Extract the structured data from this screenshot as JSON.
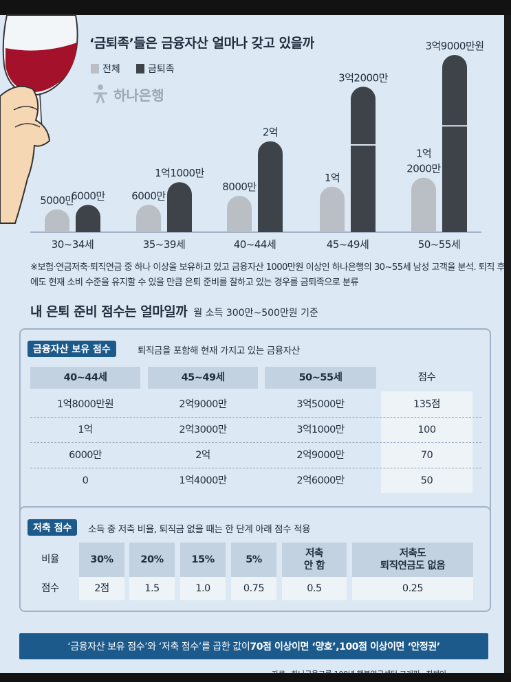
{
  "chart_data": {
    "type": "bar",
    "title": "‘금퇴족’들은 금융자산 얼마나 갖고 있을까",
    "categories": [
      "30~34세",
      "35~39세",
      "40~44세",
      "45~49세",
      "50~55세"
    ],
    "series": [
      {
        "name": "전체",
        "values": [
          5000,
          6000,
          8000,
          10000,
          12000
        ],
        "labels": [
          "5000만",
          "6000만",
          "8000만",
          "1억",
          "1억\n2000만"
        ],
        "color": "#b9bfc5"
      },
      {
        "name": "금퇴족",
        "values": [
          6000,
          11000,
          20000,
          32000,
          39000
        ],
        "labels": [
          "6000만",
          "1억1000만",
          "2억",
          "3억2000만",
          "3억9000만원"
        ],
        "color": "#3d4349"
      }
    ],
    "unit": "만원",
    "note": "※보험·연금저축·퇴직연금 중 하나 이상을 보유하고 있고 금융자산 1000만원 이상인 하나은행의 30~55세 남성 고객을 분석. 퇴직 후에도 현재 소비 수준을 유지할 수 있을 만큼 은퇴 준비를 잘하고 있는 경우를 금퇴족으로 분류"
  },
  "logo": {
    "text": "하나은행"
  },
  "section": {
    "title": "내 은퇴 준비 점수는 얼마일까",
    "subtitle": "월 소득 300만~500만원 기준"
  },
  "asset_table": {
    "label": "금융자산 보유 점수",
    "desc": "퇴직금을 포함해 현재 가지고 있는 금융자산",
    "headers": [
      "40~44세",
      "45~49세",
      "50~55세",
      "점수"
    ],
    "rows": [
      [
        "1억8000만원",
        "2억9000만",
        "3억5000만",
        "135점"
      ],
      [
        "1억",
        "2억3000만",
        "3억1000만",
        "100"
      ],
      [
        "6000만",
        "2억",
        "2억9000만",
        "70"
      ],
      [
        "0",
        "1억4000만",
        "2억6000만",
        "50"
      ]
    ]
  },
  "savings_table": {
    "label": "저축 점수",
    "desc": "소득 중 저축 비율, 퇴직금 없을 때는 한 단계 아래 점수 적용",
    "row_labels": [
      "비율",
      "점수"
    ],
    "headers": [
      "30%",
      "20%",
      "15%",
      "5%",
      "저축\n안 함",
      "저축도\n퇴직연금도 없음"
    ],
    "scores": [
      "2점",
      "1.5",
      "1.0",
      "0.75",
      "0.5",
      "0.25"
    ]
  },
  "banner": {
    "part1": "‘금융자산 보유 점수’와 ‘저축 점수’를 곱한 값이 ",
    "part2": "70점 이상이면 ‘양호’,",
    "part3": " ",
    "part4": "100점 이상이면 ‘안정권’"
  },
  "credit": "자료=하나금융그룹 100년 행복연구센터   그래픽=최혜인"
}
